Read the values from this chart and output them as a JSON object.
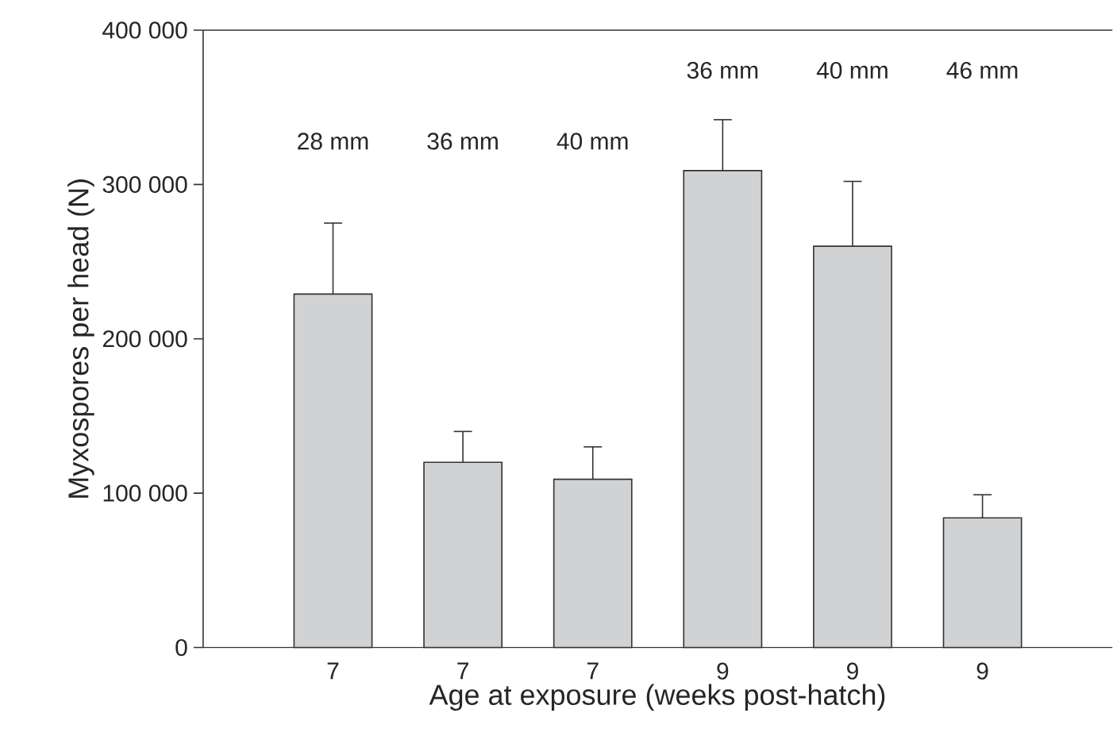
{
  "chart_data": {
    "type": "bar",
    "xlabel": "Age at exposure (weeks post-hatch)",
    "ylabel": "Myxospores per head (N)",
    "categories": [
      "7",
      "7",
      "7",
      "9",
      "9",
      "9"
    ],
    "values": [
      229000,
      120000,
      109000,
      309000,
      260000,
      84000
    ],
    "errors": [
      [
        229000,
        275000
      ],
      [
        120000,
        140000
      ],
      [
        109000,
        130000
      ],
      [
        309000,
        342000
      ],
      [
        260000,
        302000
      ],
      [
        84000,
        99000
      ]
    ],
    "color": "#d1d2d4",
    "ylim": [
      0,
      400000
    ],
    "yticks": [
      {
        "value": 0,
        "label": "0"
      },
      {
        "value": 100000,
        "label": "100 000"
      },
      {
        "value": 200000,
        "label": "200 000"
      },
      {
        "value": 300000,
        "label": "300 000"
      },
      {
        "value": 400000,
        "label": "400 000"
      }
    ],
    "annotations": [
      "28 mm",
      "36 mm",
      "40 mm",
      "36 mm",
      "40 mm",
      "46 mm"
    ]
  }
}
